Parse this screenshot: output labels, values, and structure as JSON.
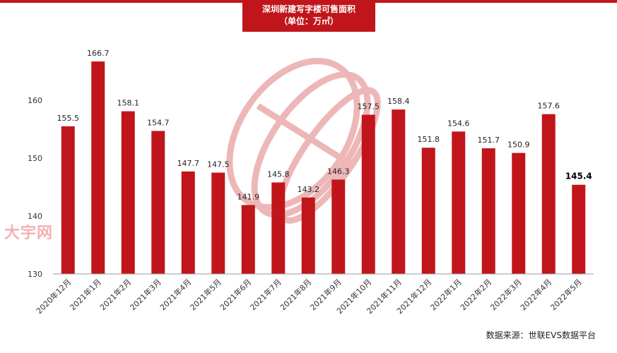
{
  "title": {
    "line1": "深圳新建写字楼可售面积",
    "line2": "（单位：万㎡）"
  },
  "watermark": "大宇网",
  "source": "数据来源：世联EVS数据平台",
  "colors": {
    "bar": "#c0161b",
    "banner": "#c0161b",
    "axis": "#999999"
  },
  "chart_data": {
    "type": "bar",
    "categories": [
      "2020年12月",
      "2021年1月",
      "2021年2月",
      "2021年3月",
      "2021年4月",
      "2021年5月",
      "2021年6月",
      "2021年7月",
      "2021年8月",
      "2021年9月",
      "2021年10月",
      "2021年11月",
      "2021年12月",
      "2022年1月",
      "2022年2月",
      "2022年3月",
      "2022年4月",
      "2022年5月"
    ],
    "values": [
      155.5,
      166.7,
      158.1,
      154.7,
      147.7,
      147.5,
      141.9,
      145.8,
      143.2,
      146.3,
      157.5,
      158.4,
      151.8,
      154.6,
      151.7,
      150.9,
      157.6,
      145.4
    ],
    "value_labels": [
      "155.5",
      "166.7",
      "158.1",
      "154.7",
      "147.7",
      "147.5",
      "141.9",
      "145.8",
      "143.2",
      "146.3",
      "157.5",
      "158.4",
      "151.8",
      "154.6",
      "151.7",
      "150.9",
      "157.6",
      "145.4"
    ],
    "ylim": [
      130,
      170
    ],
    "yticks": [
      130,
      140,
      150,
      160
    ],
    "ytick_labels": [
      "130",
      "140",
      "150",
      "160"
    ],
    "grid": false,
    "legend": "none"
  }
}
